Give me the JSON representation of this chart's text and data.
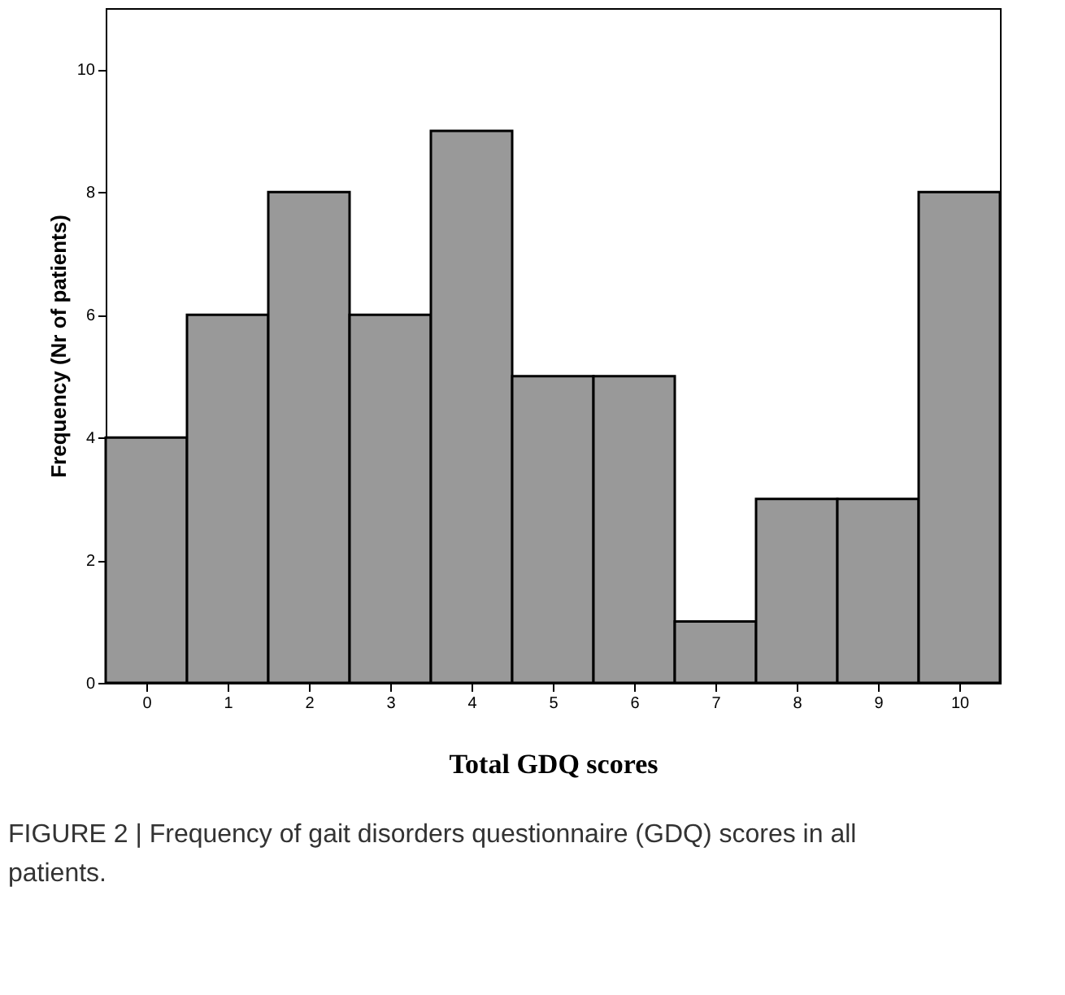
{
  "chart_data": {
    "type": "histogram",
    "xlabel": "Total GDQ scores",
    "ylabel": "Frequency (Nr of patients)",
    "bins": [
      -0.5,
      0.5,
      1.5,
      2.5,
      3.5,
      4.5,
      5.5,
      6.5,
      7.5,
      8.5,
      9.5,
      10.5
    ],
    "values": [
      4,
      6,
      8,
      6,
      9,
      5,
      5,
      1,
      3,
      3,
      8
    ],
    "color": "#999999",
    "xlim": [
      -0.5,
      10.5
    ],
    "xticks": [
      0,
      1,
      2,
      3,
      4,
      5,
      6,
      7,
      8,
      9,
      10
    ],
    "ylim": [
      0,
      11
    ],
    "yticks": [
      0,
      2,
      4,
      6,
      8,
      10
    ],
    "grid": false,
    "annotations": [
      "FIGURE 2 | Frequency of gait disorders questionnaire (GDQ) scores in all patients."
    ]
  }
}
